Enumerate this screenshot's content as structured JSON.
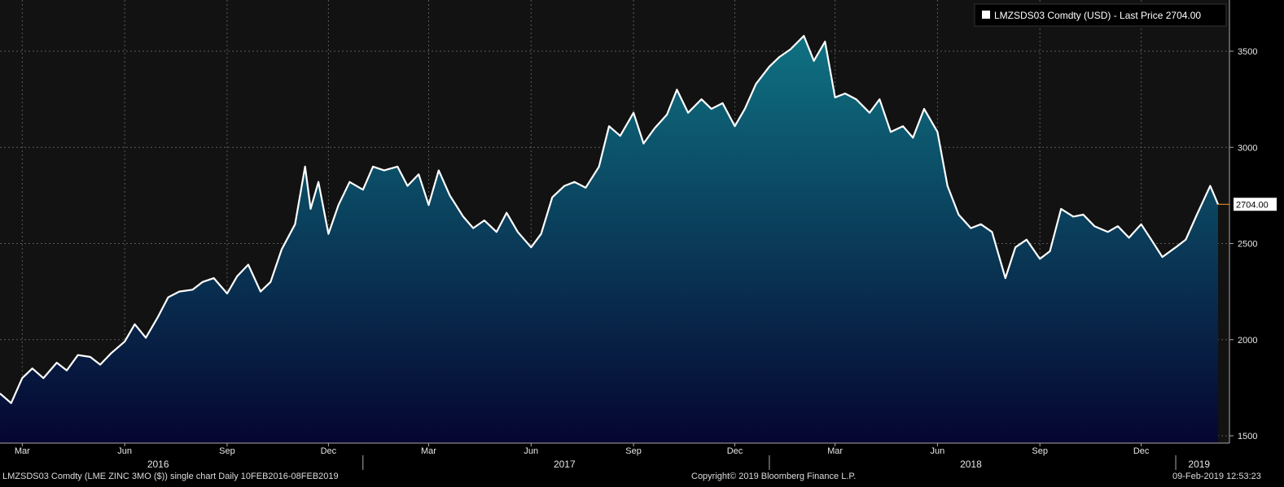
{
  "chart_data": {
    "type": "area",
    "legend": "LMZSDS03 Comdty (USD) - Last Price 2704.00",
    "legend_position": "top-right",
    "last_price_label": "2704.00",
    "ylim": [
      1500,
      3750
    ],
    "yticks": [
      1500,
      2000,
      2500,
      3000,
      3500
    ],
    "xlim": [
      "2016-02-10",
      "2019-02-08"
    ],
    "month_ticks": [
      {
        "date": "2016-03-01",
        "label": "Mar"
      },
      {
        "date": "2016-06-01",
        "label": "Jun"
      },
      {
        "date": "2016-09-01",
        "label": "Sep"
      },
      {
        "date": "2016-12-01",
        "label": "Dec"
      },
      {
        "date": "2017-03-01",
        "label": "Mar"
      },
      {
        "date": "2017-06-01",
        "label": "Jun"
      },
      {
        "date": "2017-09-01",
        "label": "Sep"
      },
      {
        "date": "2017-12-01",
        "label": "Dec"
      },
      {
        "date": "2018-03-01",
        "label": "Mar"
      },
      {
        "date": "2018-06-01",
        "label": "Jun"
      },
      {
        "date": "2018-09-01",
        "label": "Sep"
      },
      {
        "date": "2018-12-01",
        "label": "Dec"
      }
    ],
    "year_labels": [
      "2016",
      "2017",
      "2018",
      "2019"
    ],
    "grid": true,
    "colors": {
      "line": "#ffffff",
      "fill_top": "#0f7282",
      "fill_bottom": "#050530",
      "grid": "#5a5a5a",
      "axis": "#aaaaaa",
      "last_marker": "#ff9933"
    },
    "series": [
      {
        "x": [
          "2016-02-10",
          "2016-02-20",
          "2016-03-01",
          "2016-03-10",
          "2016-03-20",
          "2016-04-01",
          "2016-04-10",
          "2016-04-20",
          "2016-05-01",
          "2016-05-10",
          "2016-05-20",
          "2016-06-01",
          "2016-06-10",
          "2016-06-20",
          "2016-07-01",
          "2016-07-10",
          "2016-07-20",
          "2016-08-01",
          "2016-08-10",
          "2016-08-20",
          "2016-09-01",
          "2016-09-10",
          "2016-09-20",
          "2016-10-01",
          "2016-10-10",
          "2016-10-20",
          "2016-11-01",
          "2016-11-10",
          "2016-11-15",
          "2016-11-22",
          "2016-12-01",
          "2016-12-10",
          "2016-12-20",
          "2017-01-01",
          "2017-01-10",
          "2017-01-20",
          "2017-02-01",
          "2017-02-10",
          "2017-02-20",
          "2017-03-01",
          "2017-03-10",
          "2017-03-20",
          "2017-04-01",
          "2017-04-10",
          "2017-04-20",
          "2017-05-01",
          "2017-05-10",
          "2017-05-20",
          "2017-06-01",
          "2017-06-10",
          "2017-06-20",
          "2017-07-01",
          "2017-07-10",
          "2017-07-20",
          "2017-08-01",
          "2017-08-10",
          "2017-08-20",
          "2017-09-01",
          "2017-09-10",
          "2017-09-20",
          "2017-10-01",
          "2017-10-10",
          "2017-10-20",
          "2017-11-01",
          "2017-11-10",
          "2017-11-20",
          "2017-12-01",
          "2017-12-10",
          "2017-12-20",
          "2018-01-01",
          "2018-01-10",
          "2018-01-20",
          "2018-02-01",
          "2018-02-10",
          "2018-02-20",
          "2018-03-01",
          "2018-03-10",
          "2018-03-20",
          "2018-04-01",
          "2018-04-10",
          "2018-04-20",
          "2018-05-01",
          "2018-05-10",
          "2018-05-20",
          "2018-06-01",
          "2018-06-10",
          "2018-06-20",
          "2018-07-01",
          "2018-07-10",
          "2018-07-20",
          "2018-08-01",
          "2018-08-10",
          "2018-08-20",
          "2018-09-01",
          "2018-09-10",
          "2018-09-20",
          "2018-10-01",
          "2018-10-10",
          "2018-10-20",
          "2018-11-01",
          "2018-11-10",
          "2018-11-20",
          "2018-12-01",
          "2018-12-10",
          "2018-12-20",
          "2019-01-01",
          "2019-01-10",
          "2019-01-20",
          "2019-02-01",
          "2019-02-08"
        ],
        "values": [
          1720,
          1670,
          1800,
          1850,
          1800,
          1880,
          1840,
          1920,
          1910,
          1870,
          1930,
          1990,
          2080,
          2010,
          2120,
          2220,
          2250,
          2260,
          2300,
          2320,
          2240,
          2330,
          2390,
          2250,
          2300,
          2470,
          2600,
          2900,
          2680,
          2820,
          2550,
          2700,
          2820,
          2780,
          2900,
          2880,
          2900,
          2800,
          2860,
          2700,
          2880,
          2750,
          2640,
          2580,
          2620,
          2560,
          2660,
          2560,
          2480,
          2550,
          2740,
          2800,
          2820,
          2790,
          2900,
          3110,
          3060,
          3180,
          3020,
          3100,
          3170,
          3300,
          3180,
          3250,
          3200,
          3230,
          3110,
          3200,
          3330,
          3420,
          3470,
          3510,
          3580,
          3450,
          3550,
          3260,
          3280,
          3250,
          3180,
          3250,
          3080,
          3110,
          3050,
          3200,
          3080,
          2800,
          2650,
          2580,
          2600,
          2560,
          2320,
          2480,
          2520,
          2420,
          2460,
          2680,
          2640,
          2650,
          2590,
          2560,
          2590,
          2530,
          2600,
          2520,
          2430,
          2480,
          2520,
          2650,
          2800,
          2704
        ]
      }
    ]
  },
  "footer": {
    "left": "LMZSDS03 Comdty (LME ZINC    3MO ($)) single chart  Daily 10FEB2016-08FEB2019",
    "center": "Copyright© 2019 Bloomberg Finance L.P.",
    "right": "09-Feb-2019 12:53:23"
  }
}
